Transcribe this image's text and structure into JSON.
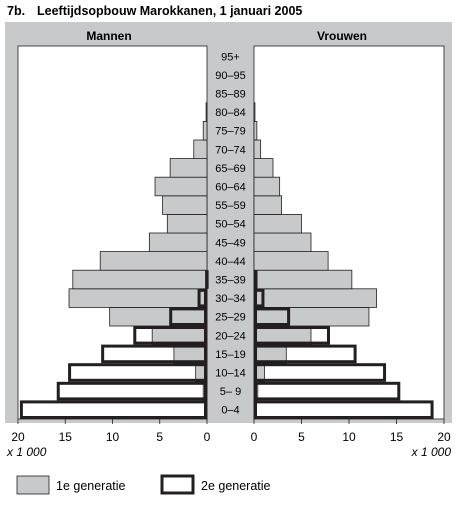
{
  "figure": {
    "number": "7b.",
    "title": "Leeftijdsopbouw Marokkanen, 1 januari 2005"
  },
  "chart_data": {
    "type": "bar",
    "orientation": "horizontal-population-pyramid",
    "categories": [
      "0–4",
      "5– 9",
      "10–14",
      "15–19",
      "20–24",
      "25–29",
      "30–34",
      "35–39",
      "40–44",
      "45–49",
      "50–54",
      "55–59",
      "60–64",
      "65–69",
      "70–74",
      "75–79",
      "80–84",
      "85–89",
      "90–95",
      "95+"
    ],
    "panels": [
      {
        "name": "Mannen",
        "series": [
          {
            "name": "1e generatie",
            "values": [
              0.1,
              0.4,
              1.2,
              3.5,
              5.8,
              10.3,
              14.6,
              14.2,
              11.3,
              6.1,
              4.2,
              4.7,
              5.5,
              3.9,
              1.4,
              0.4,
              0.1,
              0,
              0,
              0
            ]
          },
          {
            "name": "2e generatie",
            "values": [
              19.8,
              15.9,
              14.7,
              11.2,
              7.8,
              4.0,
              1.0,
              0.2,
              0,
              0,
              0,
              0,
              0,
              0,
              0,
              0,
              0,
              0,
              0,
              0
            ]
          }
        ]
      },
      {
        "name": "Vrouwen",
        "series": [
          {
            "name": "1e generatie",
            "values": [
              0.1,
              0.4,
              1.1,
              3.4,
              6.0,
              12.1,
              12.9,
              10.3,
              7.8,
              6.0,
              5.0,
              2.9,
              2.7,
              2.0,
              0.7,
              0.3,
              0.1,
              0,
              0,
              0
            ]
          },
          {
            "name": "2e generatie",
            "values": [
              18.9,
              15.4,
              13.9,
              10.8,
              8.0,
              3.8,
              1.1,
              0.3,
              0,
              0,
              0,
              0,
              0,
              0,
              0,
              0,
              0,
              0,
              0,
              0
            ]
          }
        ]
      }
    ],
    "xticks": [
      20,
      15,
      10,
      5,
      0
    ],
    "xlim": [
      0,
      20
    ],
    "xlabel": "x 1 000",
    "legend": [
      {
        "label": "1e generatie",
        "fill": "#c8c9cb"
      },
      {
        "label": "2e generatie",
        "fill": "#ffffff"
      }
    ],
    "legend_position": "bottom"
  },
  "colors": {
    "first_gen": "#c8c9cb",
    "panel_bg": "#ffffff",
    "outline": "#231f20"
  }
}
